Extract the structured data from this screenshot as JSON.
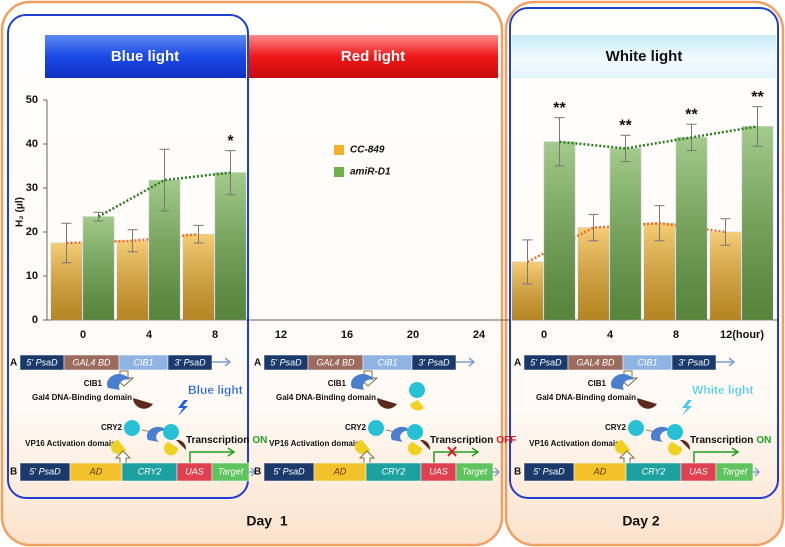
{
  "chart_data": [
    {
      "type": "bar",
      "y_label": "H₂ (μl)",
      "categories": [
        "0",
        "4",
        "8",
        "12",
        "16",
        "20",
        "24"
      ],
      "ylim": [
        0,
        50
      ],
      "yticks": [
        0,
        10,
        20,
        30,
        40,
        50
      ],
      "legend": "center",
      "trend_lines": true,
      "series": [
        {
          "name": "CC-849",
          "color": "#f2b22c",
          "trend_color": "#e8702a",
          "values": [
            17.5,
            18,
            19.5,
            null,
            null,
            null,
            null
          ],
          "errors": [
            4.5,
            2.5,
            2,
            null,
            null,
            null,
            null
          ]
        },
        {
          "name": "amiR-D1",
          "color": "#72b04e",
          "trend_color": "#2e7d1e",
          "values": [
            23.5,
            31.8,
            33.5,
            null,
            null,
            null,
            null
          ],
          "errors": [
            1,
            7,
            5,
            null,
            null,
            null,
            null
          ],
          "significance": [
            null,
            null,
            "*",
            null,
            null,
            null,
            null
          ]
        }
      ]
    },
    {
      "type": "bar",
      "categories": [
        "0",
        "4",
        "8",
        "12(hour)"
      ],
      "ylim": [
        0,
        50
      ],
      "trend_lines": true,
      "series": [
        {
          "color": "#f2b22c",
          "trend_color": "#e8702a",
          "values": [
            13.2,
            21,
            22,
            20
          ],
          "errors": [
            5,
            3,
            4,
            3
          ]
        },
        {
          "color": "#72b04e",
          "trend_color": "#2e7d1e",
          "values": [
            40.5,
            39,
            41.5,
            44
          ],
          "errors": [
            5.5,
            3,
            3,
            4.5
          ],
          "significance": [
            "**",
            "**",
            "**",
            "**"
          ]
        }
      ]
    }
  ],
  "figure": {
    "headers": [
      "Blue light",
      "Red light",
      "White light"
    ],
    "days": [
      "Day  1",
      "Day 2"
    ],
    "diagrams": [
      {
        "a_label": "A",
        "a_parts": [
          "5' PsaD",
          "GAL4 BD",
          "CIB1",
          "3' PsaD"
        ],
        "cib1": "CIB1",
        "dbd": "Gal4 DNA-Binding domain",
        "light": "Blue light",
        "light_color": "#1f5fe0",
        "cry2": "CRY2",
        "vp16": "VP16 Activation domain",
        "transcription": "Transcription",
        "state": "ON",
        "state_color": "#22a022",
        "b_label": "B",
        "b_parts": [
          "5' PsaD",
          "AD",
          "CRY2",
          "UAS",
          "Target"
        ]
      },
      {
        "a_label": "A",
        "a_parts": [
          "5' PsaD",
          "GAL4 BD",
          "CIB1",
          "3' PsaD"
        ],
        "cib1": "CIB1",
        "dbd": "Gal4 DNA-Binding domain",
        "cry2": "CRY2",
        "vp16": "VP16 Activation domain",
        "transcription": "Transcription",
        "state": "OFF",
        "state_color": "#e01818",
        "b_label": "B",
        "b_parts": [
          "5' PsaD",
          "AD",
          "CRY2",
          "UAS",
          "Target"
        ]
      },
      {
        "a_label": "A",
        "a_parts": [
          "5' PsaD",
          "GAL4 BD",
          "CIB1",
          "3' PsaD"
        ],
        "cib1": "CIB1",
        "dbd": "Gal4 DNA-Binding domain",
        "light": "White light",
        "light_color": "#4cc8e8",
        "cry2": "CRY2",
        "vp16": "VP16 Activation domain",
        "transcription": "Transcription",
        "state": "ON",
        "state_color": "#22a022",
        "b_label": "B",
        "b_parts": [
          "5' PsaD",
          "AD",
          "CRY2",
          "UAS",
          "Target"
        ]
      }
    ]
  }
}
